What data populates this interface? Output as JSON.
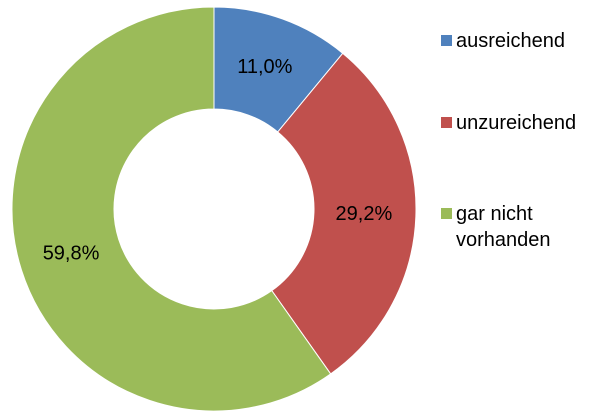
{
  "chart_data": {
    "type": "donut",
    "categories": [
      "ausreichend",
      "unzureichend",
      "gar nicht vorhanden"
    ],
    "values": [
      11.0,
      29.2,
      59.8
    ],
    "value_labels": [
      "11,0%",
      "29,2%",
      "59,8%"
    ],
    "colors": [
      "#4f81bd",
      "#c0504d",
      "#9bbb59"
    ],
    "legend": "right"
  }
}
